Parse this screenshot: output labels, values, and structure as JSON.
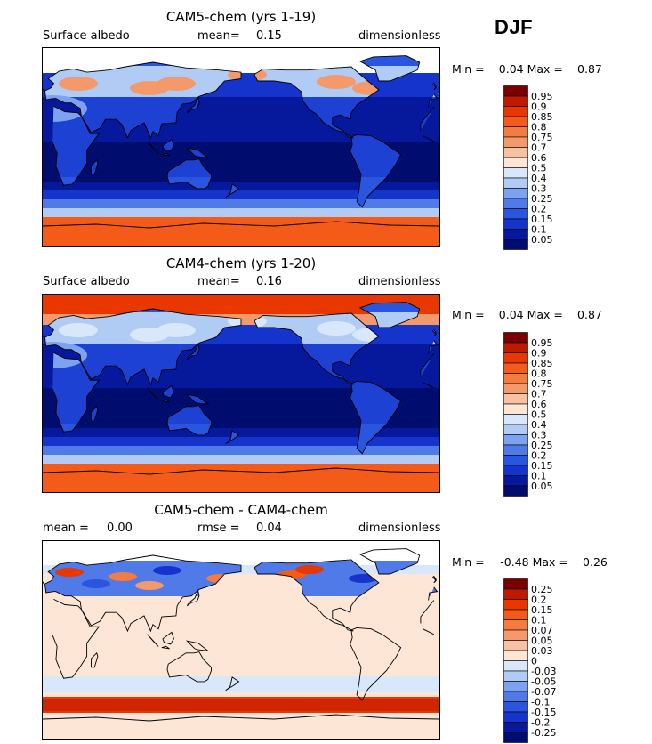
{
  "season": "DJF",
  "panels": [
    {
      "title": "CAM5-chem (yrs 1-19)",
      "left_label": "Surface albedo",
      "mean_label": "mean=",
      "mean_value": "0.15",
      "units": "dimensionless",
      "min_label": "Min =",
      "min_value": "0.04",
      "max_label": "Max =",
      "max_value": "0.87",
      "levels": [
        "0.95",
        "0.9",
        "0.85",
        "0.8",
        "0.75",
        "0.7",
        "0.6",
        "0.5",
        "0.4",
        "0.3",
        "0.25",
        "0.2",
        "0.15",
        "0.1",
        "0.05"
      ],
      "colors": [
        "#7a0000",
        "#be1a00",
        "#e83800",
        "#f45a18",
        "#f47c40",
        "#f49a6a",
        "#f7c2a4",
        "#fde6d6",
        "#d8e8fa",
        "#b0ccf5",
        "#7ca2f0",
        "#4f7ae8",
        "#2a55df",
        "#1534cc",
        "#06189c",
        "#000c6e"
      ]
    },
    {
      "title": "CAM4-chem (yrs 1-20)",
      "left_label": "Surface albedo",
      "mean_label": "mean=",
      "mean_value": "0.16",
      "units": "dimensionless",
      "min_label": "Min =",
      "min_value": "0.04",
      "max_label": "Max =",
      "max_value": "0.87",
      "levels": [
        "0.95",
        "0.9",
        "0.85",
        "0.8",
        "0.75",
        "0.7",
        "0.6",
        "0.5",
        "0.4",
        "0.3",
        "0.25",
        "0.2",
        "0.15",
        "0.1",
        "0.05"
      ],
      "colors": [
        "#7a0000",
        "#be1a00",
        "#e83800",
        "#f45a18",
        "#f47c40",
        "#f49a6a",
        "#f7c2a4",
        "#fde6d6",
        "#d8e8fa",
        "#b0ccf5",
        "#7ca2f0",
        "#4f7ae8",
        "#2a55df",
        "#1534cc",
        "#06189c",
        "#000c6e"
      ]
    },
    {
      "title": "CAM5-chem - CAM4-chem",
      "left_label": "mean =",
      "left_value": "0.00",
      "mean_label": "rmse =",
      "mean_value": "0.04",
      "units": "dimensionless",
      "min_label": "Min =",
      "min_value": "-0.48",
      "max_label": "Max =",
      "max_value": "0.26",
      "levels": [
        "0.25",
        "0.2",
        "0.15",
        "0.1",
        "0.07",
        "0.05",
        "0.03",
        "0",
        "-0.03",
        "-0.05",
        "-0.07",
        "-0.1",
        "-0.15",
        "-0.2",
        "-0.25"
      ],
      "colors": [
        "#7a0000",
        "#be1a00",
        "#e83800",
        "#f45a18",
        "#f47c40",
        "#f49a6a",
        "#f7c2a4",
        "#fde6d6",
        "#d8e8fa",
        "#b0ccf5",
        "#7ca2f0",
        "#4f7ae8",
        "#2a55df",
        "#1534cc",
        "#06189c",
        "#000c6e"
      ]
    }
  ],
  "chart_data": [
    {
      "type": "heatmap",
      "title": "CAM5-chem (yrs 1-19)",
      "variable": "Surface albedo",
      "units": "dimensionless",
      "mean": 0.15,
      "min": 0.04,
      "max": 0.87,
      "contour_levels": [
        0.05,
        0.1,
        0.15,
        0.2,
        0.25,
        0.3,
        0.4,
        0.5,
        0.6,
        0.7,
        0.75,
        0.8,
        0.85,
        0.9,
        0.95
      ]
    },
    {
      "type": "heatmap",
      "title": "CAM4-chem (yrs 1-20)",
      "variable": "Surface albedo",
      "units": "dimensionless",
      "mean": 0.16,
      "min": 0.04,
      "max": 0.87,
      "contour_levels": [
        0.05,
        0.1,
        0.15,
        0.2,
        0.25,
        0.3,
        0.4,
        0.5,
        0.6,
        0.7,
        0.75,
        0.8,
        0.85,
        0.9,
        0.95
      ]
    },
    {
      "type": "heatmap",
      "title": "CAM5-chem - CAM4-chem",
      "units": "dimensionless",
      "mean": 0.0,
      "rmse": 0.04,
      "min": -0.48,
      "max": 0.26,
      "contour_levels": [
        -0.25,
        -0.2,
        -0.15,
        -0.1,
        -0.07,
        -0.05,
        -0.03,
        0,
        0.03,
        0.05,
        0.07,
        0.1,
        0.15,
        0.2,
        0.25
      ]
    }
  ]
}
